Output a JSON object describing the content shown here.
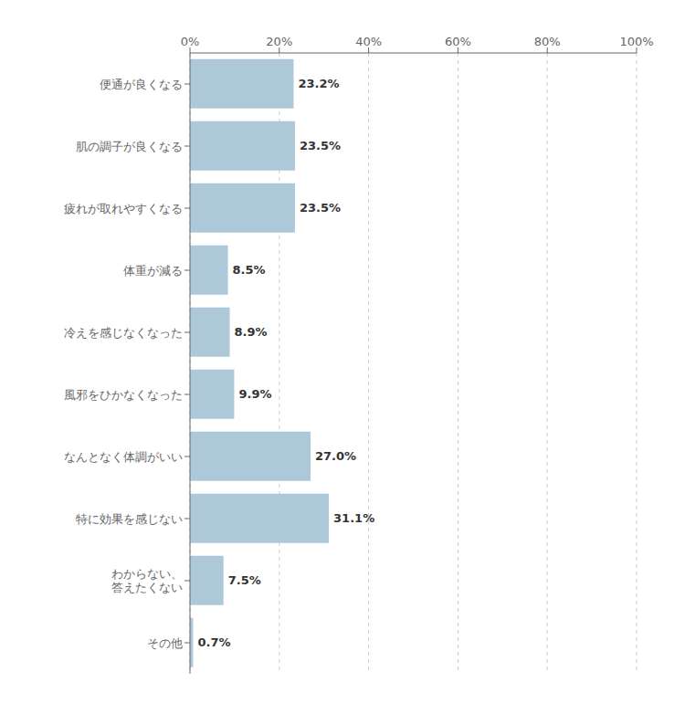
{
  "chart_data": {
    "type": "bar",
    "orientation": "horizontal",
    "categories": [
      "便通が良くなる",
      "肌の調子が良くなる",
      "疲れが取れやすくなる",
      "体重が減る",
      "冷えを感じなくなった",
      "風邪をひかなくなった",
      "なんとなく体調がいい",
      "特に効果を感じない",
      "わからない、\n答えたくない",
      "その他"
    ],
    "values": [
      23.2,
      23.5,
      23.5,
      8.5,
      8.9,
      9.9,
      27.0,
      31.1,
      7.5,
      0.7
    ],
    "value_labels": [
      "23.2%",
      "23.5%",
      "23.5%",
      "8.5%",
      "8.9%",
      "9.9%",
      "27.0%",
      "31.1%",
      "7.5%",
      "0.7%"
    ],
    "data_labels": true,
    "color": "#adc8d8",
    "xlim": [
      0,
      100
    ],
    "xticks": [
      {
        "value": 0,
        "label": "0%"
      },
      {
        "value": 20,
        "label": "20%"
      },
      {
        "value": 40,
        "label": "40%"
      },
      {
        "value": 60,
        "label": "60%"
      },
      {
        "value": 80,
        "label": "80%"
      },
      {
        "value": 100,
        "label": "100%"
      }
    ],
    "grid": true
  }
}
